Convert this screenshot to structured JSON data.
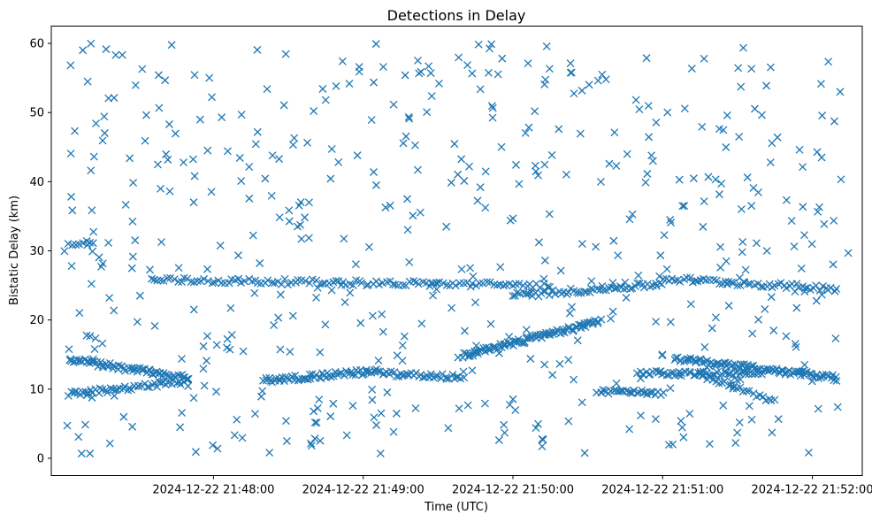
{
  "chart_data": {
    "type": "scatter",
    "title": "Detections in Delay",
    "xlabel": "Time (UTC)",
    "ylabel": "Bistatic Delay (km)",
    "marker": "x",
    "color": "#1f77b4",
    "grid": false,
    "legend": "none",
    "xlim": [
      "2024-12-22 21:46:55",
      "2024-12-22 21:52:20"
    ],
    "ylim": [
      -2.5,
      62.5
    ],
    "xticks": [
      "2024-12-22 21:48:00",
      "2024-12-22 21:49:00",
      "2024-12-22 21:50:00",
      "2024-12-22 21:51:00",
      "2024-12-22 21:52:00"
    ],
    "yticks": [
      0,
      10,
      20,
      30,
      40,
      50,
      60
    ],
    "tracks": [
      {
        "start": "2024-12-22 21:47:02",
        "end": "2024-12-22 21:47:50",
        "delay_start": 14.3,
        "delay_end": 11.6,
        "points": 70
      },
      {
        "start": "2024-12-22 21:47:02",
        "end": "2024-12-22 21:47:50",
        "delay_start": 9.2,
        "delay_end": 11.2,
        "points": 50
      },
      {
        "start": "2024-12-22 21:48:20",
        "end": "2024-12-22 21:49:05",
        "delay_start": 11.2,
        "delay_end": 12.6,
        "points": 60
      },
      {
        "start": "2024-12-22 21:49:05",
        "end": "2024-12-22 21:49:40",
        "delay_start": 12.3,
        "delay_end": 11.7,
        "points": 40
      },
      {
        "start": "2024-12-22 21:49:40",
        "end": "2024-12-22 21:50:35",
        "delay_start": 14.8,
        "delay_end": 19.8,
        "points": 90
      },
      {
        "start": "2024-12-22 21:50:35",
        "end": "2024-12-22 21:51:00",
        "delay_start": 9.8,
        "delay_end": 9.4,
        "points": 30
      },
      {
        "start": "2024-12-22 21:50:50",
        "end": "2024-12-22 21:51:38",
        "delay_start": 12.2,
        "delay_end": 12.3,
        "points": 55
      },
      {
        "start": "2024-12-22 21:51:05",
        "end": "2024-12-22 21:52:10",
        "delay_start": 14.4,
        "delay_end": 11.6,
        "points": 100
      },
      {
        "start": "2024-12-22 21:51:15",
        "end": "2024-12-22 21:51:45",
        "delay_start": 12.0,
        "delay_end": 8.2,
        "points": 25
      },
      {
        "start": "2024-12-22 21:47:35",
        "end": "2024-12-22 21:50:15",
        "delay_start": 25.8,
        "delay_end": 25.0,
        "points": 120
      },
      {
        "start": "2024-12-22 21:50:00",
        "end": "2024-12-22 21:51:00",
        "delay_start": 23.5,
        "delay_end": 25.2,
        "points": 60
      },
      {
        "start": "2024-12-22 21:51:00",
        "end": "2024-12-22 21:52:10",
        "delay_start": 26.0,
        "delay_end": 24.5,
        "points": 60
      },
      {
        "start": "2024-12-22 21:47:02",
        "end": "2024-12-22 21:47:12",
        "delay_start": 31.0,
        "delay_end": 31.0,
        "points": 8
      }
    ],
    "clutter": {
      "start": "2024-12-22 21:47:00",
      "end": "2024-12-22 21:52:15",
      "delay_min": 0.5,
      "delay_max": 60.0,
      "points": 520
    }
  }
}
